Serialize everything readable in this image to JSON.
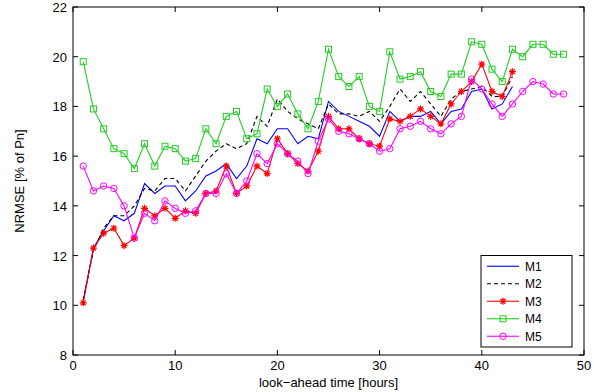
{
  "chart_data": {
    "type": "line",
    "x_label": "look−ahead time [hours]",
    "y_label": "NRMSE [% of Pn]",
    "x": [
      1,
      2,
      3,
      4,
      5,
      6,
      7,
      8,
      9,
      10,
      11,
      12,
      13,
      14,
      15,
      16,
      17,
      18,
      19,
      20,
      21,
      22,
      23,
      24,
      25,
      26,
      27,
      28,
      29,
      30,
      31,
      32,
      33,
      34,
      35,
      36,
      37,
      38,
      39,
      40,
      41,
      42,
      43,
      44,
      45,
      46,
      47,
      48
    ],
    "xlim": [
      0,
      50
    ],
    "xticks": [
      0,
      10,
      20,
      30,
      40,
      50
    ],
    "ylim": [
      8,
      22
    ],
    "yticks": [
      8,
      10,
      12,
      14,
      16,
      18,
      20,
      22
    ],
    "grid": false,
    "legend": "southeast",
    "series": [
      {
        "name": "M1",
        "color": "#0000ff",
        "line_style": "solid",
        "marker": "none",
        "values": [
          10.2,
          12.3,
          13.0,
          13.6,
          13.4,
          13.7,
          14.9,
          14.5,
          14.8,
          14.8,
          14.2,
          14.6,
          15.2,
          15.4,
          15.7,
          15.1,
          15.6,
          16.7,
          16.5,
          17.1,
          17.1,
          16.5,
          16.8,
          16.7,
          18.2,
          17.8,
          17.6,
          17.4,
          17.2,
          16.8,
          17.8,
          17.4,
          17.6,
          17.6,
          17.8,
          17.3,
          17.8,
          17.9,
          18.6,
          18.7,
          17.9,
          18.1,
          18.8,
          null,
          null,
          null,
          null,
          null
        ]
      },
      {
        "name": "M2",
        "color": "#000000",
        "line_style": "dashed",
        "marker": "none",
        "values": [
          10.2,
          12.2,
          13.1,
          13.6,
          13.6,
          14.0,
          14.7,
          14.6,
          15.1,
          15.1,
          14.6,
          15.2,
          15.8,
          16.2,
          16.5,
          16.3,
          16.5,
          17.6,
          17.2,
          18.3,
          17.8,
          17.5,
          17.3,
          17.1,
          18.1,
          17.7,
          17.7,
          17.6,
          17.8,
          17.4,
          18.0,
          18.7,
          18.2,
          18.6,
          18.1,
          17.6,
          18.3,
          18.6,
          18.7,
          18.8,
          18.4,
          18.4,
          19.2,
          null,
          null,
          null,
          null,
          null
        ]
      },
      {
        "name": "M3",
        "color": "#ff0000",
        "line_style": "solid",
        "marker": "star",
        "values": [
          10.1,
          12.3,
          12.9,
          13.1,
          12.4,
          12.7,
          13.9,
          13.6,
          13.9,
          13.5,
          13.8,
          13.7,
          14.5,
          14.6,
          15.6,
          14.5,
          14.8,
          15.6,
          15.3,
          16.7,
          16.1,
          15.7,
          15.4,
          16.2,
          17.6,
          17.1,
          17.1,
          16.7,
          16.5,
          16.4,
          17.5,
          17.4,
          17.6,
          17.9,
          17.6,
          17.3,
          18.1,
          18.6,
          19.0,
          19.7,
          18.6,
          18.4,
          19.4,
          null,
          null,
          null,
          null,
          null
        ]
      },
      {
        "name": "M4",
        "color": "#22cc22",
        "line_style": "solid",
        "marker": "square",
        "values": [
          19.8,
          17.9,
          17.1,
          16.3,
          16.1,
          15.5,
          16.5,
          15.6,
          16.4,
          16.3,
          15.8,
          15.9,
          17.1,
          16.5,
          17.6,
          17.8,
          16.7,
          16.9,
          18.7,
          18.0,
          18.5,
          17.7,
          17.1,
          18.2,
          20.3,
          19.2,
          18.8,
          19.2,
          18.0,
          17.8,
          20.2,
          19.1,
          19.2,
          19.4,
          18.6,
          18.4,
          19.3,
          19.3,
          20.6,
          20.5,
          19.5,
          19.0,
          20.3,
          20.0,
          20.5,
          20.5,
          20.1,
          20.1
        ]
      },
      {
        "name": "M5",
        "color": "#ff00ff",
        "line_style": "solid",
        "marker": "circle",
        "values": [
          15.6,
          14.6,
          14.8,
          14.7,
          14.0,
          12.7,
          13.7,
          13.4,
          14.2,
          13.9,
          13.7,
          13.8,
          14.5,
          14.5,
          15.3,
          14.5,
          15.0,
          16.1,
          15.7,
          16.5,
          16.1,
          15.8,
          15.3,
          16.6,
          17.5,
          17.0,
          16.9,
          16.7,
          16.5,
          16.2,
          16.3,
          17.1,
          17.2,
          17.4,
          17.1,
          16.9,
          17.3,
          17.6,
          19.1,
          18.7,
          18.1,
          17.6,
          18.1,
          18.6,
          19.0,
          18.9,
          18.5,
          18.5
        ]
      }
    ]
  }
}
